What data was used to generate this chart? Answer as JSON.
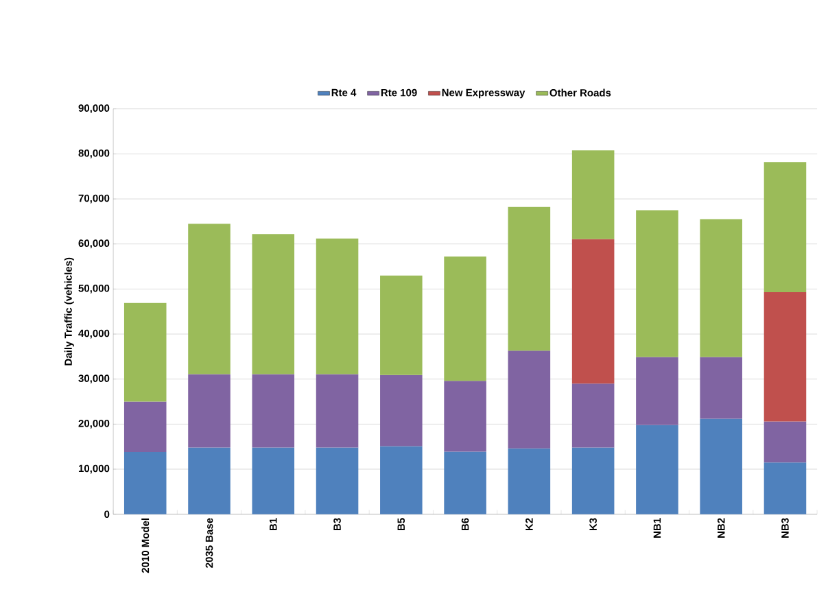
{
  "chart_data": {
    "type": "bar",
    "stacked": true,
    "ylabel": "Daily Traffic (vehicles)",
    "categories": [
      "2010 Model",
      "2035 Base",
      "B1",
      "B3",
      "B5",
      "B6",
      "K2",
      "K3",
      "NB1",
      "NB2",
      "NB3"
    ],
    "series": [
      {
        "name": "Rte 4",
        "color": "#4f81bd",
        "values": [
          13800,
          14800,
          14800,
          14800,
          15100,
          13900,
          14600,
          14800,
          19800,
          21200,
          11500
        ]
      },
      {
        "name": "Rte 109",
        "color": "#8064a2",
        "values": [
          11200,
          16300,
          16300,
          16300,
          15800,
          15700,
          21700,
          14200,
          15100,
          13700,
          9100
        ]
      },
      {
        "name": "New Expressway",
        "color": "#c0504d",
        "values": [
          null,
          null,
          null,
          null,
          null,
          null,
          null,
          32100,
          null,
          null,
          28700
        ]
      },
      {
        "name": "Other Roads",
        "color": "#9bbb59",
        "values": [
          21900,
          33400,
          31100,
          30100,
          22100,
          27600,
          31900,
          19700,
          32600,
          30600,
          28900
        ]
      }
    ],
    "ylim": [
      0,
      90000
    ],
    "yticks": [
      {
        "value": 0,
        "label": "0"
      },
      {
        "value": 10000,
        "label": "10,000"
      },
      {
        "value": 20000,
        "label": "20,000"
      },
      {
        "value": 30000,
        "label": "30,000"
      },
      {
        "value": 40000,
        "label": "40,000"
      },
      {
        "value": 50000,
        "label": "50,000"
      },
      {
        "value": 60000,
        "label": "60,000"
      },
      {
        "value": 70000,
        "label": "70,000"
      },
      {
        "value": 80000,
        "label": "80,000"
      },
      {
        "value": 90000,
        "label": "90,000"
      }
    ],
    "grid": "y",
    "legend": "top"
  }
}
